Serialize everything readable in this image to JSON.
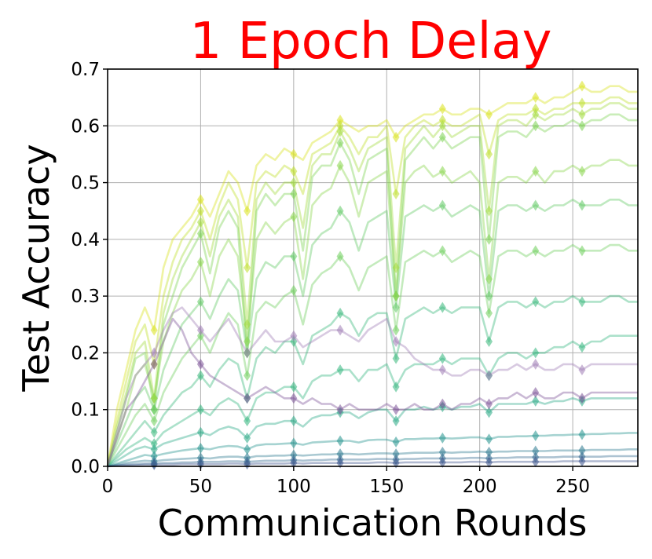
{
  "chart_data": {
    "type": "line",
    "title": "1 Epoch Delay",
    "xlabel": "Communication Rounds",
    "ylabel": "Test Accuracy",
    "xlim": [
      0,
      285
    ],
    "ylim": [
      0.0,
      0.7
    ],
    "xticks": [
      0,
      50,
      100,
      150,
      200,
      250
    ],
    "xtick_labels": [
      "0",
      "50",
      "100",
      "150",
      "200",
      "250"
    ],
    "yticks": [
      0.0,
      0.1,
      0.2,
      0.3,
      0.4,
      0.5,
      0.6,
      0.7
    ],
    "ytick_labels": [
      "0.0",
      "0.1",
      "0.2",
      "0.3",
      "0.4",
      "0.5",
      "0.6",
      "0.7"
    ],
    "grid": true,
    "legend": "none",
    "colors": {
      "title": "#ff0000",
      "grid": "#b0b0b0",
      "axes": "#000000"
    },
    "x": [
      0,
      5,
      10,
      15,
      20,
      25,
      30,
      35,
      40,
      45,
      50,
      55,
      60,
      65,
      70,
      75,
      80,
      85,
      90,
      95,
      100,
      105,
      110,
      115,
      120,
      125,
      130,
      135,
      140,
      145,
      150,
      155,
      160,
      165,
      170,
      175,
      180,
      185,
      190,
      195,
      200,
      205,
      210,
      215,
      220,
      225,
      230,
      235,
      240,
      245,
      250,
      255,
      260,
      265,
      270,
      275,
      280,
      285
    ],
    "series": [
      {
        "color": "#d8e219",
        "values": [
          0.0,
          0.1,
          0.17,
          0.24,
          0.28,
          0.24,
          0.35,
          0.4,
          0.42,
          0.44,
          0.47,
          0.44,
          0.48,
          0.52,
          0.5,
          0.45,
          0.53,
          0.55,
          0.54,
          0.56,
          0.55,
          0.54,
          0.57,
          0.58,
          0.59,
          0.61,
          0.6,
          0.59,
          0.6,
          0.6,
          0.61,
          0.58,
          0.6,
          0.61,
          0.62,
          0.62,
          0.63,
          0.62,
          0.62,
          0.63,
          0.63,
          0.62,
          0.63,
          0.64,
          0.64,
          0.64,
          0.65,
          0.64,
          0.65,
          0.65,
          0.66,
          0.67,
          0.66,
          0.66,
          0.67,
          0.67,
          0.66,
          0.66
        ]
      },
      {
        "color": "#bddf26",
        "values": [
          0.0,
          0.08,
          0.15,
          0.22,
          0.25,
          0.18,
          0.3,
          0.36,
          0.4,
          0.42,
          0.45,
          0.4,
          0.46,
          0.5,
          0.47,
          0.35,
          0.5,
          0.52,
          0.51,
          0.53,
          0.52,
          0.48,
          0.55,
          0.56,
          0.57,
          0.6,
          0.58,
          0.55,
          0.58,
          0.58,
          0.6,
          0.48,
          0.58,
          0.6,
          0.61,
          0.6,
          0.61,
          0.6,
          0.6,
          0.61,
          0.62,
          0.55,
          0.61,
          0.62,
          0.62,
          0.62,
          0.63,
          0.62,
          0.63,
          0.63,
          0.64,
          0.64,
          0.64,
          0.64,
          0.65,
          0.65,
          0.64,
          0.64
        ]
      },
      {
        "color": "#a0da39",
        "values": [
          0.0,
          0.07,
          0.13,
          0.2,
          0.22,
          0.12,
          0.27,
          0.33,
          0.37,
          0.4,
          0.43,
          0.37,
          0.44,
          0.47,
          0.44,
          0.25,
          0.47,
          0.5,
          0.48,
          0.5,
          0.5,
          0.42,
          0.53,
          0.55,
          0.55,
          0.59,
          0.56,
          0.52,
          0.56,
          0.57,
          0.58,
          0.35,
          0.56,
          0.58,
          0.6,
          0.58,
          0.6,
          0.58,
          0.59,
          0.6,
          0.6,
          0.45,
          0.6,
          0.61,
          0.61,
          0.6,
          0.62,
          0.61,
          0.62,
          0.62,
          0.63,
          0.62,
          0.63,
          0.63,
          0.64,
          0.64,
          0.63,
          0.63
        ]
      },
      {
        "color": "#7ad151",
        "values": [
          0.0,
          0.06,
          0.12,
          0.19,
          0.2,
          0.1,
          0.25,
          0.3,
          0.35,
          0.38,
          0.41,
          0.34,
          0.42,
          0.45,
          0.42,
          0.2,
          0.45,
          0.48,
          0.46,
          0.48,
          0.48,
          0.38,
          0.51,
          0.53,
          0.53,
          0.57,
          0.54,
          0.48,
          0.54,
          0.55,
          0.56,
          0.3,
          0.54,
          0.56,
          0.58,
          0.56,
          0.58,
          0.56,
          0.57,
          0.58,
          0.58,
          0.4,
          0.58,
          0.59,
          0.59,
          0.58,
          0.6,
          0.59,
          0.6,
          0.6,
          0.61,
          0.6,
          0.61,
          0.61,
          0.62,
          0.62,
          0.61,
          0.61
        ]
      },
      {
        "color": "#86d549",
        "values": [
          0.0,
          0.05,
          0.1,
          0.16,
          0.18,
          0.12,
          0.22,
          0.27,
          0.31,
          0.33,
          0.36,
          0.3,
          0.37,
          0.4,
          0.37,
          0.22,
          0.4,
          0.43,
          0.41,
          0.43,
          0.44,
          0.33,
          0.46,
          0.48,
          0.49,
          0.53,
          0.5,
          0.44,
          0.5,
          0.51,
          0.52,
          0.3,
          0.5,
          0.52,
          0.53,
          0.51,
          0.52,
          0.5,
          0.51,
          0.52,
          0.5,
          0.33,
          0.5,
          0.51,
          0.51,
          0.5,
          0.52,
          0.5,
          0.52,
          0.52,
          0.53,
          0.52,
          0.53,
          0.53,
          0.54,
          0.54,
          0.53,
          0.53
        ]
      },
      {
        "color": "#5ec962",
        "values": [
          0.0,
          0.04,
          0.08,
          0.12,
          0.14,
          0.1,
          0.17,
          0.21,
          0.25,
          0.27,
          0.29,
          0.26,
          0.3,
          0.33,
          0.31,
          0.2,
          0.33,
          0.36,
          0.35,
          0.37,
          0.37,
          0.3,
          0.39,
          0.41,
          0.42,
          0.45,
          0.43,
          0.38,
          0.43,
          0.44,
          0.45,
          0.28,
          0.44,
          0.45,
          0.46,
          0.45,
          0.46,
          0.44,
          0.45,
          0.46,
          0.45,
          0.3,
          0.45,
          0.46,
          0.46,
          0.45,
          0.46,
          0.45,
          0.46,
          0.46,
          0.47,
          0.46,
          0.46,
          0.46,
          0.47,
          0.47,
          0.46,
          0.46
        ]
      },
      {
        "color": "#6ccd5a",
        "values": [
          0.0,
          0.03,
          0.06,
          0.09,
          0.11,
          0.08,
          0.13,
          0.16,
          0.19,
          0.21,
          0.23,
          0.2,
          0.24,
          0.27,
          0.25,
          0.16,
          0.27,
          0.29,
          0.28,
          0.3,
          0.31,
          0.25,
          0.32,
          0.34,
          0.35,
          0.37,
          0.35,
          0.31,
          0.35,
          0.36,
          0.37,
          0.24,
          0.36,
          0.37,
          0.38,
          0.37,
          0.38,
          0.36,
          0.37,
          0.38,
          0.37,
          0.27,
          0.37,
          0.38,
          0.38,
          0.37,
          0.38,
          0.37,
          0.38,
          0.38,
          0.39,
          0.38,
          0.38,
          0.38,
          0.39,
          0.39,
          0.38,
          0.38
        ]
      },
      {
        "color": "#35b779",
        "values": [
          0.0,
          0.02,
          0.04,
          0.06,
          0.08,
          0.06,
          0.09,
          0.11,
          0.13,
          0.14,
          0.16,
          0.14,
          0.17,
          0.19,
          0.18,
          0.12,
          0.19,
          0.21,
          0.2,
          0.22,
          0.22,
          0.18,
          0.23,
          0.24,
          0.25,
          0.27,
          0.26,
          0.23,
          0.26,
          0.27,
          0.27,
          0.19,
          0.26,
          0.27,
          0.28,
          0.27,
          0.28,
          0.27,
          0.28,
          0.28,
          0.28,
          0.22,
          0.28,
          0.29,
          0.29,
          0.28,
          0.29,
          0.28,
          0.29,
          0.29,
          0.3,
          0.29,
          0.29,
          0.29,
          0.3,
          0.3,
          0.29,
          0.29
        ]
      },
      {
        "color": "#2fb47c",
        "values": [
          0.0,
          0.015,
          0.03,
          0.04,
          0.05,
          0.04,
          0.06,
          0.07,
          0.08,
          0.09,
          0.1,
          0.09,
          0.11,
          0.12,
          0.11,
          0.08,
          0.12,
          0.13,
          0.13,
          0.14,
          0.14,
          0.12,
          0.15,
          0.16,
          0.16,
          0.17,
          0.17,
          0.15,
          0.17,
          0.17,
          0.18,
          0.14,
          0.17,
          0.18,
          0.18,
          0.18,
          0.19,
          0.18,
          0.19,
          0.19,
          0.19,
          0.16,
          0.19,
          0.2,
          0.2,
          0.19,
          0.2,
          0.2,
          0.21,
          0.21,
          0.22,
          0.21,
          0.22,
          0.22,
          0.23,
          0.23,
          0.23,
          0.23
        ]
      },
      {
        "color": "#26a784",
        "values": [
          0.0,
          0.01,
          0.02,
          0.03,
          0.035,
          0.03,
          0.04,
          0.045,
          0.05,
          0.055,
          0.06,
          0.055,
          0.065,
          0.07,
          0.065,
          0.05,
          0.07,
          0.075,
          0.075,
          0.08,
          0.08,
          0.07,
          0.085,
          0.09,
          0.09,
          0.095,
          0.095,
          0.085,
          0.095,
          0.1,
          0.1,
          0.08,
          0.1,
          0.1,
          0.105,
          0.1,
          0.105,
          0.1,
          0.105,
          0.105,
          0.11,
          0.095,
          0.11,
          0.11,
          0.11,
          0.11,
          0.115,
          0.11,
          0.115,
          0.115,
          0.12,
          0.115,
          0.12,
          0.12,
          0.12,
          0.12,
          0.12,
          0.12
        ]
      },
      {
        "color": "#21918c",
        "values": [
          0.0,
          0.005,
          0.01,
          0.015,
          0.02,
          0.018,
          0.022,
          0.025,
          0.028,
          0.03,
          0.032,
          0.03,
          0.034,
          0.036,
          0.035,
          0.03,
          0.037,
          0.039,
          0.039,
          0.04,
          0.041,
          0.038,
          0.042,
          0.043,
          0.044,
          0.045,
          0.045,
          0.042,
          0.046,
          0.047,
          0.047,
          0.043,
          0.048,
          0.048,
          0.049,
          0.049,
          0.05,
          0.049,
          0.05,
          0.051,
          0.051,
          0.048,
          0.052,
          0.052,
          0.053,
          0.053,
          0.054,
          0.054,
          0.055,
          0.055,
          0.056,
          0.056,
          0.057,
          0.057,
          0.058,
          0.058,
          0.059,
          0.059
        ]
      },
      {
        "color": "#2a788e",
        "values": [
          0.0,
          0.003,
          0.006,
          0.008,
          0.01,
          0.009,
          0.011,
          0.012,
          0.013,
          0.014,
          0.015,
          0.014,
          0.016,
          0.017,
          0.017,
          0.015,
          0.018,
          0.018,
          0.019,
          0.019,
          0.02,
          0.019,
          0.02,
          0.021,
          0.021,
          0.022,
          0.022,
          0.021,
          0.022,
          0.023,
          0.023,
          0.022,
          0.023,
          0.024,
          0.024,
          0.024,
          0.025,
          0.024,
          0.025,
          0.025,
          0.026,
          0.025,
          0.026,
          0.026,
          0.027,
          0.027,
          0.027,
          0.027,
          0.028,
          0.028,
          0.028,
          0.028,
          0.029,
          0.029,
          0.029,
          0.029,
          0.03,
          0.03
        ]
      },
      {
        "color": "#31688e",
        "values": [
          0.0,
          0.002,
          0.003,
          0.004,
          0.005,
          0.005,
          0.006,
          0.006,
          0.007,
          0.007,
          0.008,
          0.008,
          0.008,
          0.009,
          0.009,
          0.008,
          0.009,
          0.01,
          0.01,
          0.01,
          0.011,
          0.01,
          0.011,
          0.011,
          0.012,
          0.012,
          0.012,
          0.012,
          0.012,
          0.013,
          0.013,
          0.012,
          0.013,
          0.013,
          0.014,
          0.014,
          0.014,
          0.014,
          0.014,
          0.015,
          0.015,
          0.014,
          0.015,
          0.015,
          0.016,
          0.016,
          0.016,
          0.016,
          0.016,
          0.017,
          0.017,
          0.017,
          0.017,
          0.017,
          0.018,
          0.018,
          0.018,
          0.018
        ]
      },
      {
        "color": "#3b528b",
        "values": [
          0.0,
          0.001,
          0.002,
          0.002,
          0.003,
          0.003,
          0.003,
          0.003,
          0.004,
          0.004,
          0.004,
          0.004,
          0.004,
          0.005,
          0.005,
          0.004,
          0.005,
          0.005,
          0.005,
          0.005,
          0.006,
          0.005,
          0.006,
          0.006,
          0.006,
          0.006,
          0.006,
          0.006,
          0.006,
          0.007,
          0.007,
          0.006,
          0.007,
          0.007,
          0.007,
          0.007,
          0.007,
          0.007,
          0.007,
          0.008,
          0.008,
          0.007,
          0.008,
          0.008,
          0.008,
          0.008,
          0.008,
          0.008,
          0.008,
          0.009,
          0.009,
          0.009,
          0.009,
          0.009,
          0.009,
          0.009,
          0.009,
          0.009
        ]
      },
      {
        "color": "#7a5195",
        "values": [
          0.0,
          0.05,
          0.1,
          0.12,
          0.15,
          0.18,
          0.22,
          0.26,
          0.24,
          0.2,
          0.18,
          0.16,
          0.15,
          0.14,
          0.13,
          0.12,
          0.13,
          0.14,
          0.13,
          0.12,
          0.12,
          0.11,
          0.12,
          0.11,
          0.11,
          0.1,
          0.11,
          0.1,
          0.1,
          0.1,
          0.11,
          0.1,
          0.1,
          0.11,
          0.1,
          0.1,
          0.11,
          0.1,
          0.11,
          0.11,
          0.12,
          0.11,
          0.12,
          0.12,
          0.13,
          0.12,
          0.13,
          0.12,
          0.12,
          0.13,
          0.13,
          0.12,
          0.13,
          0.13,
          0.13,
          0.13,
          0.13,
          0.13
        ]
      },
      {
        "color": "#9e7bb5",
        "values": [
          0.0,
          0.06,
          0.12,
          0.16,
          0.18,
          0.2,
          0.24,
          0.27,
          0.28,
          0.26,
          0.24,
          0.22,
          0.24,
          0.26,
          0.23,
          0.2,
          0.22,
          0.24,
          0.22,
          0.22,
          0.23,
          0.21,
          0.22,
          0.23,
          0.24,
          0.24,
          0.23,
          0.22,
          0.24,
          0.25,
          0.26,
          0.22,
          0.21,
          0.19,
          0.18,
          0.17,
          0.17,
          0.16,
          0.16,
          0.17,
          0.17,
          0.16,
          0.17,
          0.17,
          0.18,
          0.17,
          0.18,
          0.17,
          0.17,
          0.18,
          0.18,
          0.17,
          0.18,
          0.18,
          0.18,
          0.18,
          0.18,
          0.18
        ]
      }
    ]
  }
}
